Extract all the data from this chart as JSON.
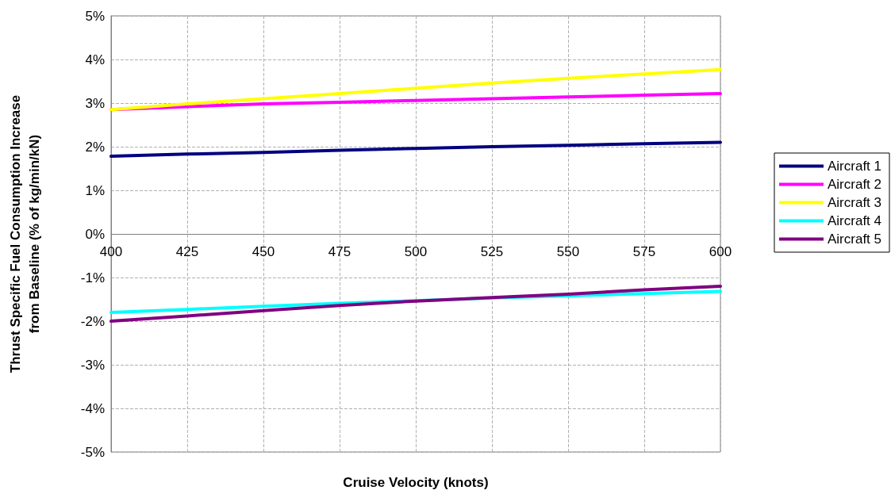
{
  "chart_data": {
    "type": "line",
    "xlabel": "Cruise Velocity (knots)",
    "ylabel": "Thrust Specific Fuel Consumption Increase\nfrom Baseline (% of kg/min/kN)",
    "x": [
      400,
      425,
      450,
      475,
      500,
      525,
      550,
      575,
      600
    ],
    "series": [
      {
        "name": "Aircraft 1",
        "color": "#000080",
        "values": [
          1.78,
          1.83,
          1.87,
          1.92,
          1.96,
          2.0,
          2.03,
          2.07,
          2.1
        ]
      },
      {
        "name": "Aircraft 2",
        "color": "#ff00ff",
        "values": [
          2.85,
          2.92,
          2.98,
          3.02,
          3.06,
          3.1,
          3.14,
          3.18,
          3.22
        ]
      },
      {
        "name": "Aircraft 3",
        "color": "#ffff00",
        "values": [
          2.85,
          2.98,
          3.1,
          3.22,
          3.34,
          3.46,
          3.57,
          3.67,
          3.77
        ]
      },
      {
        "name": "Aircraft 4",
        "color": "#00ffff",
        "values": [
          -1.8,
          -1.73,
          -1.66,
          -1.59,
          -1.53,
          -1.47,
          -1.42,
          -1.37,
          -1.32
        ]
      },
      {
        "name": "Aircraft 5",
        "color": "#800080",
        "values": [
          -2.0,
          -1.88,
          -1.76,
          -1.64,
          -1.54,
          -1.46,
          -1.38,
          -1.28,
          -1.2
        ]
      }
    ],
    "xlim": [
      400,
      600
    ],
    "xticks": [
      400,
      425,
      450,
      475,
      500,
      525,
      550,
      575,
      600
    ],
    "ylim": [
      -5,
      5
    ],
    "yticks": [
      {
        "value": -5,
        "label": "-5%"
      },
      {
        "value": -4,
        "label": "-4%"
      },
      {
        "value": -3,
        "label": "-3%"
      },
      {
        "value": -2,
        "label": "-2%"
      },
      {
        "value": -1,
        "label": "-1%"
      },
      {
        "value": 0,
        "label": "0%"
      },
      {
        "value": 1,
        "label": "1%"
      },
      {
        "value": 2,
        "label": "2%"
      },
      {
        "value": 3,
        "label": "3%"
      },
      {
        "value": 4,
        "label": "4%"
      },
      {
        "value": 5,
        "label": "5%"
      }
    ],
    "grid": true,
    "legend": "right",
    "marker": "none",
    "line_style": "solid"
  }
}
